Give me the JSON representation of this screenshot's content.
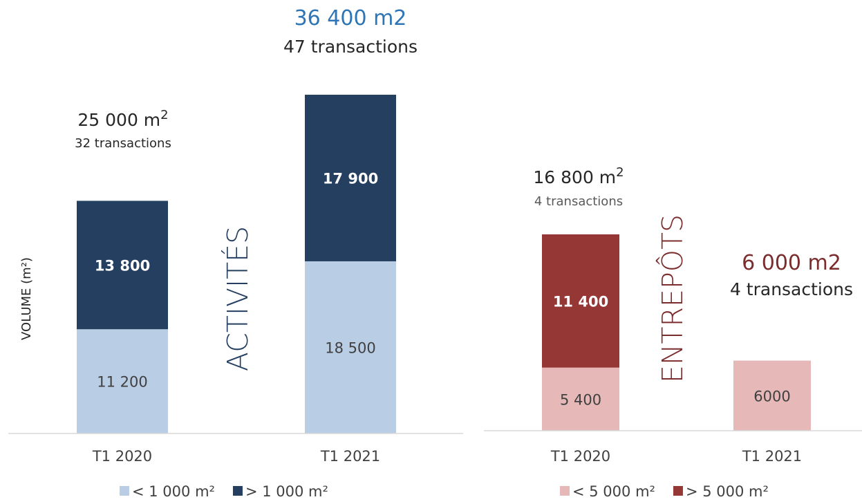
{
  "chart_data": [
    {
      "type": "bar",
      "stacked": true,
      "title": "ACTIVITÉS",
      "ylabel": "VOLUME (m²)",
      "categories": [
        "T1 2020",
        "T1 2021"
      ],
      "series": [
        {
          "name": "< 1 000 m²",
          "values": [
            11200,
            18500
          ],
          "labels": [
            "11 200",
            "18 500"
          ],
          "color": "#B9CDE5"
        },
        {
          "name": "> 1 000 m²",
          "values": [
            13800,
            17900
          ],
          "labels": [
            "13 800",
            "17 900"
          ],
          "color": "#243F60"
        }
      ],
      "totals": [
        {
          "main": "25 000 m",
          "sup": "2",
          "sub": "32 transactions"
        },
        {
          "main": "36 400 m2",
          "sup": "",
          "sub": "47 transactions"
        }
      ],
      "ylim": [
        0,
        36400
      ],
      "grid": false,
      "legend": "bottom"
    },
    {
      "type": "bar",
      "stacked": true,
      "title": "ENTREPÔTS",
      "categories": [
        "T1 2020",
        "T1 2021"
      ],
      "series": [
        {
          "name": "< 5 000 m²",
          "values": [
            5400,
            6000
          ],
          "labels": [
            "5 400",
            "6000"
          ],
          "color": "#E6B9B8"
        },
        {
          "name": "> 5 000 m²",
          "values": [
            11400,
            0
          ],
          "labels": [
            "11 400",
            ""
          ],
          "color": "#953735"
        }
      ],
      "totals": [
        {
          "main": "16 800 m",
          "sup": "2",
          "sub": "4 transactions"
        },
        {
          "main": "6 000 m2",
          "sup": "",
          "sub": "4 transactions"
        }
      ],
      "ylim": [
        0,
        36400
      ],
      "grid": false,
      "legend": "bottom"
    }
  ],
  "colors": {
    "activites_title": "#243F60",
    "activites_total_2021": "#2E75B6",
    "entrepots_title": "#7B2C2C",
    "axis": "#D9D9D9",
    "text": "#262626"
  }
}
